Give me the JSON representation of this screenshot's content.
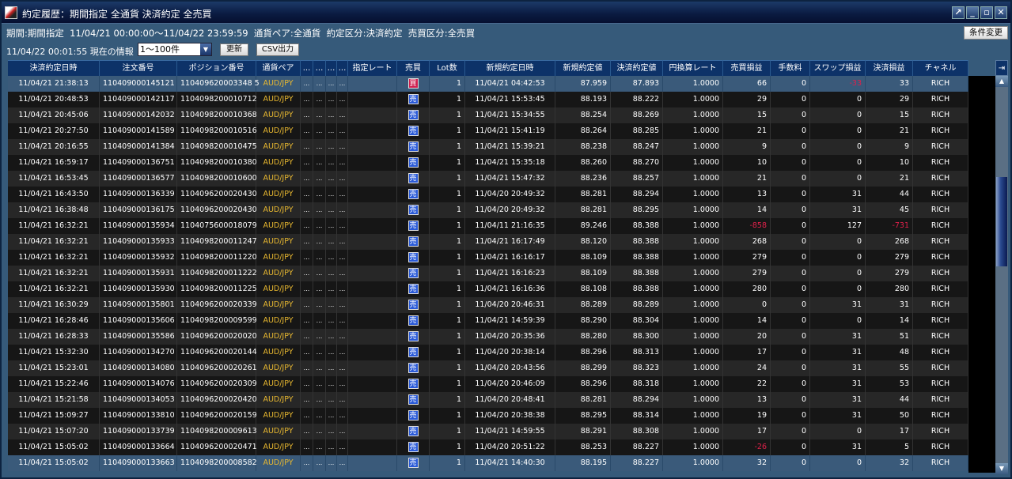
{
  "window": {
    "title": "約定履歴：期間指定 全通貨 決済約定 全売買",
    "controls": [
      "↗",
      "_",
      "▫",
      "✕"
    ]
  },
  "conditions": {
    "text": "期間:期間指定  11/04/21 00:00:00～11/04/22 23:59:59  通貨ペア:全通貨  約定区分:決済約定  売買区分:全売買",
    "change_button": "条件変更"
  },
  "toolbar": {
    "info": "11/04/22 00:01:55 現在の情報",
    "range_select": "1～100件",
    "refresh": "更新",
    "csv": "CSV出力"
  },
  "columns": [
    "決済約定日時",
    "注文番号",
    "ポジション番号",
    "通貨ペア",
    "...",
    "...",
    "...",
    "...",
    "指定レート",
    "売買",
    "Lot数",
    "新規約定日時",
    "新規約定値",
    "決済約定値",
    "円換算レート",
    "売買損益",
    "手数料",
    "スワップ損益",
    "決済損益",
    "チャネル"
  ],
  "rows": [
    [
      "11/04/21 21:38:13",
      "110409000145121",
      "110409620003348 5",
      "AUD/JPY",
      "買",
      "1",
      "11/04/21 04:42:53",
      "87.959",
      "87.893",
      "1.0000",
      "66",
      "0",
      "-33",
      "33",
      "RICH"
    ],
    [
      "11/04/21 20:48:53",
      "110409000142117",
      "1104098200010712",
      "AUD/JPY",
      "売",
      "1",
      "11/04/21 15:53:45",
      "88.193",
      "88.222",
      "1.0000",
      "29",
      "0",
      "0",
      "29",
      "RICH"
    ],
    [
      "11/04/21 20:45:06",
      "110409000142032",
      "1104098200010368",
      "AUD/JPY",
      "売",
      "1",
      "11/04/21 15:34:55",
      "88.254",
      "88.269",
      "1.0000",
      "15",
      "0",
      "0",
      "15",
      "RICH"
    ],
    [
      "11/04/21 20:27:50",
      "110409000141589",
      "1104098200010516",
      "AUD/JPY",
      "売",
      "1",
      "11/04/21 15:41:19",
      "88.264",
      "88.285",
      "1.0000",
      "21",
      "0",
      "0",
      "21",
      "RICH"
    ],
    [
      "11/04/21 20:16:55",
      "110409000141384",
      "1104098200010475",
      "AUD/JPY",
      "売",
      "1",
      "11/04/21 15:39:21",
      "88.238",
      "88.247",
      "1.0000",
      "9",
      "0",
      "0",
      "9",
      "RICH"
    ],
    [
      "11/04/21 16:59:17",
      "110409000136751",
      "1104098200010380",
      "AUD/JPY",
      "売",
      "1",
      "11/04/21 15:35:18",
      "88.260",
      "88.270",
      "1.0000",
      "10",
      "0",
      "0",
      "10",
      "RICH"
    ],
    [
      "11/04/21 16:53:45",
      "110409000136577",
      "1104098200010600",
      "AUD/JPY",
      "売",
      "1",
      "11/04/21 15:47:32",
      "88.236",
      "88.257",
      "1.0000",
      "21",
      "0",
      "0",
      "21",
      "RICH"
    ],
    [
      "11/04/21 16:43:50",
      "110409000136339",
      "1104096200020430",
      "AUD/JPY",
      "売",
      "1",
      "11/04/20 20:49:32",
      "88.281",
      "88.294",
      "1.0000",
      "13",
      "0",
      "31",
      "44",
      "RICH"
    ],
    [
      "11/04/21 16:38:48",
      "110409000136175",
      "1104096200020430",
      "AUD/JPY",
      "売",
      "1",
      "11/04/20 20:49:32",
      "88.281",
      "88.295",
      "1.0000",
      "14",
      "0",
      "31",
      "45",
      "RICH"
    ],
    [
      "11/04/21 16:32:21",
      "110409000135934",
      "1104075600018079",
      "AUD/JPY",
      "売",
      "1",
      "11/04/11 21:16:35",
      "89.246",
      "88.388",
      "1.0000",
      "-858",
      "0",
      "127",
      "-731",
      "RICH"
    ],
    [
      "11/04/21 16:32:21",
      "110409000135933",
      "1104098200011247",
      "AUD/JPY",
      "売",
      "1",
      "11/04/21 16:17:49",
      "88.120",
      "88.388",
      "1.0000",
      "268",
      "0",
      "0",
      "268",
      "RICH"
    ],
    [
      "11/04/21 16:32:21",
      "110409000135932",
      "1104098200011220",
      "AUD/JPY",
      "売",
      "1",
      "11/04/21 16:16:17",
      "88.109",
      "88.388",
      "1.0000",
      "279",
      "0",
      "0",
      "279",
      "RICH"
    ],
    [
      "11/04/21 16:32:21",
      "110409000135931",
      "1104098200011222",
      "AUD/JPY",
      "売",
      "1",
      "11/04/21 16:16:23",
      "88.109",
      "88.388",
      "1.0000",
      "279",
      "0",
      "0",
      "279",
      "RICH"
    ],
    [
      "11/04/21 16:32:21",
      "110409000135930",
      "1104098200011225",
      "AUD/JPY",
      "売",
      "1",
      "11/04/21 16:16:36",
      "88.108",
      "88.388",
      "1.0000",
      "280",
      "0",
      "0",
      "280",
      "RICH"
    ],
    [
      "11/04/21 16:30:29",
      "110409000135801",
      "1104096200020339",
      "AUD/JPY",
      "売",
      "1",
      "11/04/20 20:46:31",
      "88.289",
      "88.289",
      "1.0000",
      "0",
      "0",
      "31",
      "31",
      "RICH"
    ],
    [
      "11/04/21 16:28:46",
      "110409000135606",
      "1104098200009599",
      "AUD/JPY",
      "売",
      "1",
      "11/04/21 14:59:39",
      "88.290",
      "88.304",
      "1.0000",
      "14",
      "0",
      "0",
      "14",
      "RICH"
    ],
    [
      "11/04/21 16:28:33",
      "110409000135586",
      "1104096200020020",
      "AUD/JPY",
      "売",
      "1",
      "11/04/20 20:35:36",
      "88.280",
      "88.300",
      "1.0000",
      "20",
      "0",
      "31",
      "51",
      "RICH"
    ],
    [
      "11/04/21 15:32:30",
      "110409000134270",
      "1104096200020144",
      "AUD/JPY",
      "売",
      "1",
      "11/04/20 20:38:14",
      "88.296",
      "88.313",
      "1.0000",
      "17",
      "0",
      "31",
      "48",
      "RICH"
    ],
    [
      "11/04/21 15:23:01",
      "110409000134080",
      "1104096200020261",
      "AUD/JPY",
      "売",
      "1",
      "11/04/20 20:43:56",
      "88.299",
      "88.323",
      "1.0000",
      "24",
      "0",
      "31",
      "55",
      "RICH"
    ],
    [
      "11/04/21 15:22:46",
      "110409000134076",
      "1104096200020309",
      "AUD/JPY",
      "売",
      "1",
      "11/04/20 20:46:09",
      "88.296",
      "88.318",
      "1.0000",
      "22",
      "0",
      "31",
      "53",
      "RICH"
    ],
    [
      "11/04/21 15:21:58",
      "110409000134053",
      "1104096200020420",
      "AUD/JPY",
      "売",
      "1",
      "11/04/20 20:48:41",
      "88.281",
      "88.294",
      "1.0000",
      "13",
      "0",
      "31",
      "44",
      "RICH"
    ],
    [
      "11/04/21 15:09:27",
      "110409000133810",
      "1104096200020159",
      "AUD/JPY",
      "売",
      "1",
      "11/04/20 20:38:38",
      "88.295",
      "88.314",
      "1.0000",
      "19",
      "0",
      "31",
      "50",
      "RICH"
    ],
    [
      "11/04/21 15:07:20",
      "110409000133739",
      "1104098200009613",
      "AUD/JPY",
      "売",
      "1",
      "11/04/21 14:59:55",
      "88.291",
      "88.308",
      "1.0000",
      "17",
      "0",
      "0",
      "17",
      "RICH"
    ],
    [
      "11/04/21 15:05:02",
      "110409000133664",
      "1104096200020471",
      "AUD/JPY",
      "売",
      "1",
      "11/04/20 20:51:22",
      "88.253",
      "88.227",
      "1.0000",
      "-26",
      "0",
      "31",
      "5",
      "RICH"
    ],
    [
      "11/04/21 15:05:02",
      "110409000133663",
      "1104098200008582",
      "AUD/JPY",
      "売",
      "1",
      "11/04/21 14:40:30",
      "88.195",
      "88.227",
      "1.0000",
      "32",
      "0",
      "0",
      "32",
      "RICH"
    ]
  ],
  "selected_rows": [
    0,
    24
  ],
  "colors": {
    "header": "#0d3268",
    "selected_row": "#3a5a7a",
    "pair": "#e8b830",
    "negative": "#e0204a",
    "sell_badge": "#2a5ad8",
    "buy_badge": "#d02050"
  },
  "scrollbar": {
    "position_fraction": 0.3
  }
}
